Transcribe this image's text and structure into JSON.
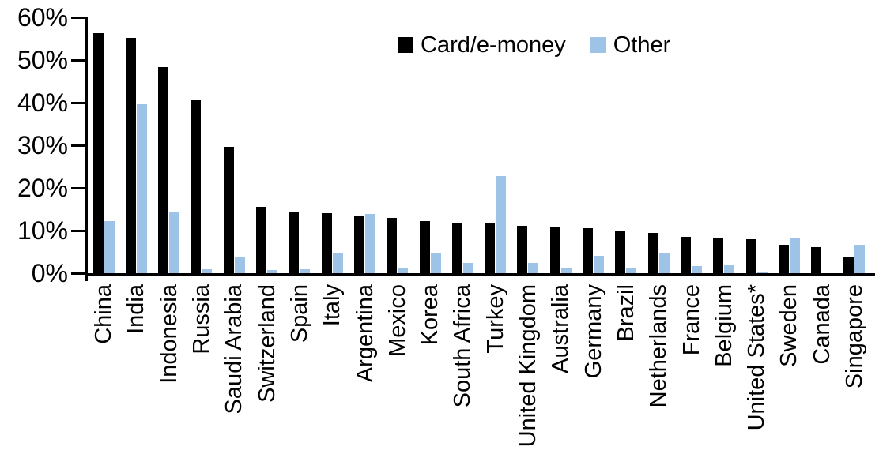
{
  "chart_data": {
    "type": "bar",
    "title": "",
    "xlabel": "",
    "ylabel": "",
    "ylim": [
      0,
      60
    ],
    "grid": false,
    "legend_position": "top-center",
    "yticks": [
      "0%",
      "10%",
      "20%",
      "30%",
      "40%",
      "50%",
      "60%"
    ],
    "ytick_values": [
      0,
      10,
      20,
      30,
      40,
      50,
      60
    ],
    "categories": [
      "China",
      "India",
      "Indonesia",
      "Russia",
      "Saudi Arabia",
      "Switzerland",
      "Spain",
      "Italy",
      "Argentina",
      "Mexico",
      "Korea",
      "South Africa",
      "Turkey",
      "United Kingdom",
      "Australia",
      "Germany",
      "Brazil",
      "Netherlands",
      "France",
      "Belgium",
      "United States*",
      "Sweden",
      "Canada",
      "Singapore"
    ],
    "series": [
      {
        "name": "Card/e-money",
        "color": "#000000",
        "values": [
          56.3,
          55.2,
          48.4,
          40.5,
          29.7,
          15.6,
          14.3,
          14.1,
          13.4,
          13.0,
          12.3,
          11.9,
          11.7,
          11.2,
          11.0,
          10.6,
          9.9,
          9.4,
          8.6,
          8.3,
          7.9,
          6.6,
          6.1,
          3.9
        ]
      },
      {
        "name": "Other",
        "color": "#9DC3E6",
        "values": [
          12.3,
          39.6,
          14.4,
          0.9,
          3.8,
          0.7,
          1.0,
          4.6,
          13.9,
          1.3,
          4.8,
          2.4,
          22.8,
          2.4,
          1.1,
          4.0,
          1.1,
          4.8,
          1.7,
          2.0,
          0.4,
          8.3,
          0,
          6.6
        ]
      }
    ]
  }
}
